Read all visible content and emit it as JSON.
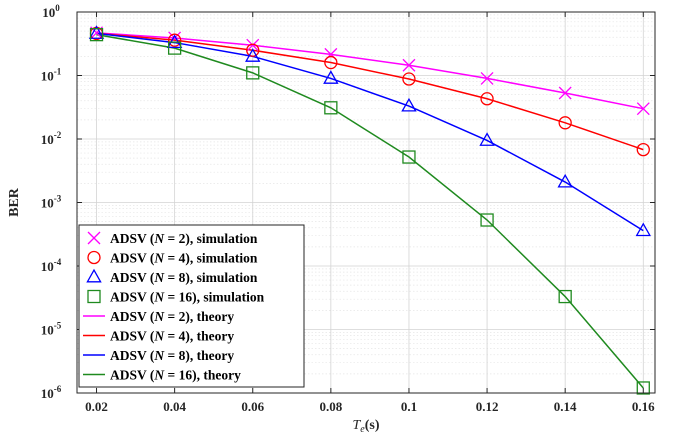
{
  "chart_data": {
    "type": "line",
    "title": "",
    "xlabel": "T_e (s)",
    "xlabel_main": "T",
    "xlabel_sub": "e",
    "xlabel_unit": "(s)",
    "ylabel": "BER",
    "x_scale": "linear",
    "y_scale": "log",
    "xlim": [
      0.015,
      0.163
    ],
    "ylim": [
      1e-06,
      1
    ],
    "x_ticks": [
      0.02,
      0.04,
      0.06,
      0.08,
      0.1,
      0.12,
      0.14,
      0.16
    ],
    "x_tick_labels": [
      "0.02",
      "0.04",
      "0.06",
      "0.08",
      "0.1",
      "0.12",
      "0.14",
      "0.16"
    ],
    "y_ticks": [
      {
        "value": 1,
        "base": "10",
        "exp": "0"
      },
      {
        "value": 0.1,
        "base": "10",
        "exp": "-1"
      },
      {
        "value": 0.01,
        "base": "10",
        "exp": "-2"
      },
      {
        "value": 0.001,
        "base": "10",
        "exp": "-3"
      },
      {
        "value": 0.0001,
        "base": "10",
        "exp": "-4"
      },
      {
        "value": 1e-05,
        "base": "10",
        "exp": "-5"
      },
      {
        "value": 1e-06,
        "base": "10",
        "exp": "-6"
      }
    ],
    "grid": true,
    "legend_position": "bottom-left",
    "x": [
      0.02,
      0.04,
      0.06,
      0.08,
      0.1,
      0.12,
      0.14,
      0.16
    ],
    "series": [
      {
        "name": "ADSV (N = 2), simulation",
        "label_prefix": "ADSV (",
        "label_var": "N",
        "label_suffix": " = 2), simulation",
        "kind": "simulation",
        "marker": "x",
        "color": "#ff00ff",
        "values": [
          0.47,
          0.39,
          0.3,
          0.215,
          0.145,
          0.09,
          0.053,
          0.03
        ]
      },
      {
        "name": "ADSV (N = 4), simulation",
        "label_prefix": "ADSV (",
        "label_var": "N",
        "label_suffix": " = 4), simulation",
        "kind": "simulation",
        "marker": "circle",
        "color": "#ff0000",
        "values": [
          0.46,
          0.36,
          0.25,
          0.16,
          0.088,
          0.043,
          0.018,
          0.0068
        ]
      },
      {
        "name": "ADSV (N = 8), simulation",
        "label_prefix": "ADSV (",
        "label_var": "N",
        "label_suffix": " = 8), simulation",
        "kind": "simulation",
        "marker": "triangle",
        "color": "#0000ff",
        "values": [
          0.46,
          0.33,
          0.2,
          0.09,
          0.033,
          0.0095,
          0.0021,
          0.00036
        ]
      },
      {
        "name": "ADSV (N = 16), simulation",
        "label_prefix": "ADSV (",
        "label_var": "N",
        "label_suffix": " = 16), simulation",
        "kind": "simulation",
        "marker": "square",
        "color": "#1f8a1f",
        "values": [
          0.44,
          0.27,
          0.11,
          0.031,
          0.0052,
          0.00053,
          3.3e-05,
          1.2e-06
        ]
      },
      {
        "name": "ADSV (N = 2), theory",
        "label_prefix": "ADSV (",
        "label_var": "N",
        "label_suffix": " = 2), theory",
        "kind": "theory",
        "marker": "none",
        "color": "#ff00ff",
        "values": [
          0.47,
          0.39,
          0.3,
          0.215,
          0.145,
          0.09,
          0.053,
          0.03
        ]
      },
      {
        "name": "ADSV (N = 4), theory",
        "label_prefix": "ADSV (",
        "label_var": "N",
        "label_suffix": " = 4), theory",
        "kind": "theory",
        "marker": "none",
        "color": "#ff0000",
        "values": [
          0.46,
          0.36,
          0.25,
          0.16,
          0.088,
          0.043,
          0.018,
          0.0068
        ]
      },
      {
        "name": "ADSV (N = 8), theory",
        "label_prefix": "ADSV (",
        "label_var": "N",
        "label_suffix": " = 8), theory",
        "kind": "theory",
        "marker": "none",
        "color": "#0000ff",
        "values": [
          0.46,
          0.33,
          0.2,
          0.09,
          0.033,
          0.0095,
          0.0021,
          0.00036
        ]
      },
      {
        "name": "ADSV (N = 16), theory",
        "label_prefix": "ADSV (",
        "label_var": "N",
        "label_suffix": " = 16), theory",
        "kind": "theory",
        "marker": "none",
        "color": "#1f8a1f",
        "values": [
          0.44,
          0.27,
          0.11,
          0.031,
          0.0052,
          0.00053,
          3.3e-05,
          1.2e-06
        ]
      }
    ]
  }
}
